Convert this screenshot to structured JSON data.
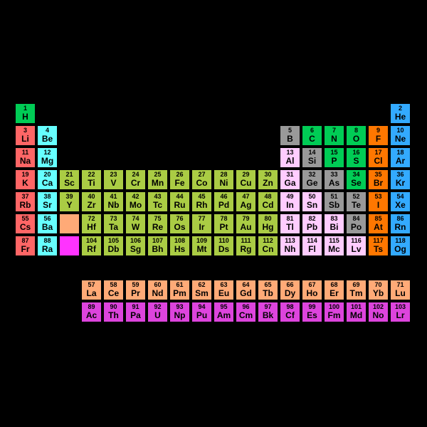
{
  "periodic_table": {
    "type": "periodic-table",
    "background_color": "#000000",
    "cell_size": 31,
    "cell_border": "#000000",
    "num_fontsize": 9,
    "sym_fontsize": 12,
    "font_weight": "bold",
    "colors": {
      "alkali": "#ff6666",
      "alkaline": "#66ffff",
      "transition": "#aacc44",
      "lanthanoid": "#ffaa77",
      "actinoid": "#dd44dd",
      "post": "#ffccff",
      "metalloid": "#999999",
      "nonmetal": "#00cc55",
      "halogen": "#ff7700",
      "noble": "#33aaff",
      "unknown": "#ff33ff"
    },
    "elements": [
      {
        "n": 1,
        "s": "H",
        "r": 0,
        "c": 0,
        "cat": "nonmetal"
      },
      {
        "n": 2,
        "s": "He",
        "r": 0,
        "c": 17,
        "cat": "noble"
      },
      {
        "n": 3,
        "s": "Li",
        "r": 1,
        "c": 0,
        "cat": "alkali"
      },
      {
        "n": 4,
        "s": "Be",
        "r": 1,
        "c": 1,
        "cat": "alkaline"
      },
      {
        "n": 5,
        "s": "B",
        "r": 1,
        "c": 12,
        "cat": "metalloid"
      },
      {
        "n": 6,
        "s": "C",
        "r": 1,
        "c": 13,
        "cat": "nonmetal"
      },
      {
        "n": 7,
        "s": "N",
        "r": 1,
        "c": 14,
        "cat": "nonmetal"
      },
      {
        "n": 8,
        "s": "O",
        "r": 1,
        "c": 15,
        "cat": "nonmetal"
      },
      {
        "n": 9,
        "s": "F",
        "r": 1,
        "c": 16,
        "cat": "halogen"
      },
      {
        "n": 10,
        "s": "Ne",
        "r": 1,
        "c": 17,
        "cat": "noble"
      },
      {
        "n": 11,
        "s": "Na",
        "r": 2,
        "c": 0,
        "cat": "alkali"
      },
      {
        "n": 12,
        "s": "Mg",
        "r": 2,
        "c": 1,
        "cat": "alkaline"
      },
      {
        "n": 13,
        "s": "Al",
        "r": 2,
        "c": 12,
        "cat": "post"
      },
      {
        "n": 14,
        "s": "Si",
        "r": 2,
        "c": 13,
        "cat": "metalloid"
      },
      {
        "n": 15,
        "s": "P",
        "r": 2,
        "c": 14,
        "cat": "nonmetal"
      },
      {
        "n": 16,
        "s": "S",
        "r": 2,
        "c": 15,
        "cat": "nonmetal"
      },
      {
        "n": 17,
        "s": "Cl",
        "r": 2,
        "c": 16,
        "cat": "halogen"
      },
      {
        "n": 18,
        "s": "Ar",
        "r": 2,
        "c": 17,
        "cat": "noble"
      },
      {
        "n": 19,
        "s": "K",
        "r": 3,
        "c": 0,
        "cat": "alkali"
      },
      {
        "n": 20,
        "s": "Ca",
        "r": 3,
        "c": 1,
        "cat": "alkaline"
      },
      {
        "n": 21,
        "s": "Sc",
        "r": 3,
        "c": 2,
        "cat": "transition"
      },
      {
        "n": 22,
        "s": "Ti",
        "r": 3,
        "c": 3,
        "cat": "transition"
      },
      {
        "n": 23,
        "s": "V",
        "r": 3,
        "c": 4,
        "cat": "transition"
      },
      {
        "n": 24,
        "s": "Cr",
        "r": 3,
        "c": 5,
        "cat": "transition"
      },
      {
        "n": 25,
        "s": "Mn",
        "r": 3,
        "c": 6,
        "cat": "transition"
      },
      {
        "n": 26,
        "s": "Fe",
        "r": 3,
        "c": 7,
        "cat": "transition"
      },
      {
        "n": 27,
        "s": "Co",
        "r": 3,
        "c": 8,
        "cat": "transition"
      },
      {
        "n": 28,
        "s": "Ni",
        "r": 3,
        "c": 9,
        "cat": "transition"
      },
      {
        "n": 29,
        "s": "Cu",
        "r": 3,
        "c": 10,
        "cat": "transition"
      },
      {
        "n": 30,
        "s": "Zn",
        "r": 3,
        "c": 11,
        "cat": "transition"
      },
      {
        "n": 31,
        "s": "Ga",
        "r": 3,
        "c": 12,
        "cat": "post"
      },
      {
        "n": 32,
        "s": "Ge",
        "r": 3,
        "c": 13,
        "cat": "metalloid"
      },
      {
        "n": 33,
        "s": "As",
        "r": 3,
        "c": 14,
        "cat": "metalloid"
      },
      {
        "n": 34,
        "s": "Se",
        "r": 3,
        "c": 15,
        "cat": "nonmetal"
      },
      {
        "n": 35,
        "s": "Br",
        "r": 3,
        "c": 16,
        "cat": "halogen"
      },
      {
        "n": 36,
        "s": "Kr",
        "r": 3,
        "c": 17,
        "cat": "noble"
      },
      {
        "n": 37,
        "s": "Rb",
        "r": 4,
        "c": 0,
        "cat": "alkali"
      },
      {
        "n": 38,
        "s": "Sr",
        "r": 4,
        "c": 1,
        "cat": "alkaline"
      },
      {
        "n": 39,
        "s": "Y",
        "r": 4,
        "c": 2,
        "cat": "transition"
      },
      {
        "n": 40,
        "s": "Zr",
        "r": 4,
        "c": 3,
        "cat": "transition"
      },
      {
        "n": 41,
        "s": "Nb",
        "r": 4,
        "c": 4,
        "cat": "transition"
      },
      {
        "n": 42,
        "s": "Mo",
        "r": 4,
        "c": 5,
        "cat": "transition"
      },
      {
        "n": 43,
        "s": "Tc",
        "r": 4,
        "c": 6,
        "cat": "transition"
      },
      {
        "n": 44,
        "s": "Ru",
        "r": 4,
        "c": 7,
        "cat": "transition"
      },
      {
        "n": 45,
        "s": "Rh",
        "r": 4,
        "c": 8,
        "cat": "transition"
      },
      {
        "n": 46,
        "s": "Pd",
        "r": 4,
        "c": 9,
        "cat": "transition"
      },
      {
        "n": 47,
        "s": "Ag",
        "r": 4,
        "c": 10,
        "cat": "transition"
      },
      {
        "n": 48,
        "s": "Cd",
        "r": 4,
        "c": 11,
        "cat": "transition"
      },
      {
        "n": 49,
        "s": "In",
        "r": 4,
        "c": 12,
        "cat": "post"
      },
      {
        "n": 50,
        "s": "Sn",
        "r": 4,
        "c": 13,
        "cat": "post"
      },
      {
        "n": 51,
        "s": "Sb",
        "r": 4,
        "c": 14,
        "cat": "metalloid"
      },
      {
        "n": 52,
        "s": "Te",
        "r": 4,
        "c": 15,
        "cat": "metalloid"
      },
      {
        "n": 53,
        "s": "I",
        "r": 4,
        "c": 16,
        "cat": "halogen"
      },
      {
        "n": 54,
        "s": "Xe",
        "r": 4,
        "c": 17,
        "cat": "noble"
      },
      {
        "n": 55,
        "s": "Cs",
        "r": 5,
        "c": 0,
        "cat": "alkali"
      },
      {
        "n": 56,
        "s": "Ba",
        "r": 5,
        "c": 1,
        "cat": "alkaline"
      },
      {
        "n": 0,
        "s": "",
        "r": 5,
        "c": 2,
        "cat": "lanthanoid"
      },
      {
        "n": 72,
        "s": "Hf",
        "r": 5,
        "c": 3,
        "cat": "transition"
      },
      {
        "n": 73,
        "s": "Ta",
        "r": 5,
        "c": 4,
        "cat": "transition"
      },
      {
        "n": 74,
        "s": "W",
        "r": 5,
        "c": 5,
        "cat": "transition"
      },
      {
        "n": 75,
        "s": "Re",
        "r": 5,
        "c": 6,
        "cat": "transition"
      },
      {
        "n": 76,
        "s": "Os",
        "r": 5,
        "c": 7,
        "cat": "transition"
      },
      {
        "n": 77,
        "s": "Ir",
        "r": 5,
        "c": 8,
        "cat": "transition"
      },
      {
        "n": 78,
        "s": "Pt",
        "r": 5,
        "c": 9,
        "cat": "transition"
      },
      {
        "n": 79,
        "s": "Au",
        "r": 5,
        "c": 10,
        "cat": "transition"
      },
      {
        "n": 80,
        "s": "Hg",
        "r": 5,
        "c": 11,
        "cat": "transition"
      },
      {
        "n": 81,
        "s": "Tl",
        "r": 5,
        "c": 12,
        "cat": "post"
      },
      {
        "n": 82,
        "s": "Pb",
        "r": 5,
        "c": 13,
        "cat": "post"
      },
      {
        "n": 83,
        "s": "Bi",
        "r": 5,
        "c": 14,
        "cat": "post"
      },
      {
        "n": 84,
        "s": "Po",
        "r": 5,
        "c": 15,
        "cat": "metalloid"
      },
      {
        "n": 85,
        "s": "At",
        "r": 5,
        "c": 16,
        "cat": "halogen"
      },
      {
        "n": 86,
        "s": "Rn",
        "r": 5,
        "c": 17,
        "cat": "noble"
      },
      {
        "n": 87,
        "s": "Fr",
        "r": 6,
        "c": 0,
        "cat": "alkali"
      },
      {
        "n": 88,
        "s": "Ra",
        "r": 6,
        "c": 1,
        "cat": "alkaline"
      },
      {
        "n": 0,
        "s": "",
        "r": 6,
        "c": 2,
        "cat": "unknown"
      },
      {
        "n": 104,
        "s": "Rf",
        "r": 6,
        "c": 3,
        "cat": "transition"
      },
      {
        "n": 105,
        "s": "Db",
        "r": 6,
        "c": 4,
        "cat": "transition"
      },
      {
        "n": 106,
        "s": "Sg",
        "r": 6,
        "c": 5,
        "cat": "transition"
      },
      {
        "n": 107,
        "s": "Bh",
        "r": 6,
        "c": 6,
        "cat": "transition"
      },
      {
        "n": 108,
        "s": "Hs",
        "r": 6,
        "c": 7,
        "cat": "transition"
      },
      {
        "n": 109,
        "s": "Mt",
        "r": 6,
        "c": 8,
        "cat": "transition"
      },
      {
        "n": 110,
        "s": "Ds",
        "r": 6,
        "c": 9,
        "cat": "transition"
      },
      {
        "n": 111,
        "s": "Rg",
        "r": 6,
        "c": 10,
        "cat": "transition"
      },
      {
        "n": 112,
        "s": "Cn",
        "r": 6,
        "c": 11,
        "cat": "transition"
      },
      {
        "n": 113,
        "s": "Nh",
        "r": 6,
        "c": 12,
        "cat": "post"
      },
      {
        "n": 114,
        "s": "Fl",
        "r": 6,
        "c": 13,
        "cat": "post"
      },
      {
        "n": 115,
        "s": "Mc",
        "r": 6,
        "c": 14,
        "cat": "post"
      },
      {
        "n": 116,
        "s": "Lv",
        "r": 6,
        "c": 15,
        "cat": "post"
      },
      {
        "n": 117,
        "s": "Ts",
        "r": 6,
        "c": 16,
        "cat": "halogen"
      },
      {
        "n": 118,
        "s": "Og",
        "r": 6,
        "c": 17,
        "cat": "noble"
      },
      {
        "n": 57,
        "s": "La",
        "r": 8,
        "c": 3,
        "cat": "lanthanoid"
      },
      {
        "n": 58,
        "s": "Ce",
        "r": 8,
        "c": 4,
        "cat": "lanthanoid"
      },
      {
        "n": 59,
        "s": "Pr",
        "r": 8,
        "c": 5,
        "cat": "lanthanoid"
      },
      {
        "n": 60,
        "s": "Nd",
        "r": 8,
        "c": 6,
        "cat": "lanthanoid"
      },
      {
        "n": 61,
        "s": "Pm",
        "r": 8,
        "c": 7,
        "cat": "lanthanoid"
      },
      {
        "n": 62,
        "s": "Sm",
        "r": 8,
        "c": 8,
        "cat": "lanthanoid"
      },
      {
        "n": 63,
        "s": "Eu",
        "r": 8,
        "c": 9,
        "cat": "lanthanoid"
      },
      {
        "n": 64,
        "s": "Gd",
        "r": 8,
        "c": 10,
        "cat": "lanthanoid"
      },
      {
        "n": 65,
        "s": "Tb",
        "r": 8,
        "c": 11,
        "cat": "lanthanoid"
      },
      {
        "n": 66,
        "s": "Dy",
        "r": 8,
        "c": 12,
        "cat": "lanthanoid"
      },
      {
        "n": 67,
        "s": "Ho",
        "r": 8,
        "c": 13,
        "cat": "lanthanoid"
      },
      {
        "n": 68,
        "s": "Er",
        "r": 8,
        "c": 14,
        "cat": "lanthanoid"
      },
      {
        "n": 69,
        "s": "Tm",
        "r": 8,
        "c": 15,
        "cat": "lanthanoid"
      },
      {
        "n": 70,
        "s": "Yb",
        "r": 8,
        "c": 16,
        "cat": "lanthanoid"
      },
      {
        "n": 71,
        "s": "Lu",
        "r": 8,
        "c": 17,
        "cat": "lanthanoid"
      },
      {
        "n": 89,
        "s": "Ac",
        "r": 9,
        "c": 3,
        "cat": "actinoid"
      },
      {
        "n": 90,
        "s": "Th",
        "r": 9,
        "c": 4,
        "cat": "actinoid"
      },
      {
        "n": 91,
        "s": "Pa",
        "r": 9,
        "c": 5,
        "cat": "actinoid"
      },
      {
        "n": 92,
        "s": "U",
        "r": 9,
        "c": 6,
        "cat": "actinoid"
      },
      {
        "n": 93,
        "s": "Np",
        "r": 9,
        "c": 7,
        "cat": "actinoid"
      },
      {
        "n": 94,
        "s": "Pu",
        "r": 9,
        "c": 8,
        "cat": "actinoid"
      },
      {
        "n": 95,
        "s": "Am",
        "r": 9,
        "c": 9,
        "cat": "actinoid"
      },
      {
        "n": 96,
        "s": "Cm",
        "r": 9,
        "c": 10,
        "cat": "actinoid"
      },
      {
        "n": 97,
        "s": "Bk",
        "r": 9,
        "c": 11,
        "cat": "actinoid"
      },
      {
        "n": 98,
        "s": "Cf",
        "r": 9,
        "c": 12,
        "cat": "actinoid"
      },
      {
        "n": 99,
        "s": "Es",
        "r": 9,
        "c": 13,
        "cat": "actinoid"
      },
      {
        "n": 100,
        "s": "Fm",
        "r": 9,
        "c": 14,
        "cat": "actinoid"
      },
      {
        "n": 101,
        "s": "Md",
        "r": 9,
        "c": 15,
        "cat": "actinoid"
      },
      {
        "n": 102,
        "s": "No",
        "r": 9,
        "c": 16,
        "cat": "actinoid"
      },
      {
        "n": 103,
        "s": "Lr",
        "r": 9,
        "c": 17,
        "cat": "actinoid"
      }
    ]
  }
}
